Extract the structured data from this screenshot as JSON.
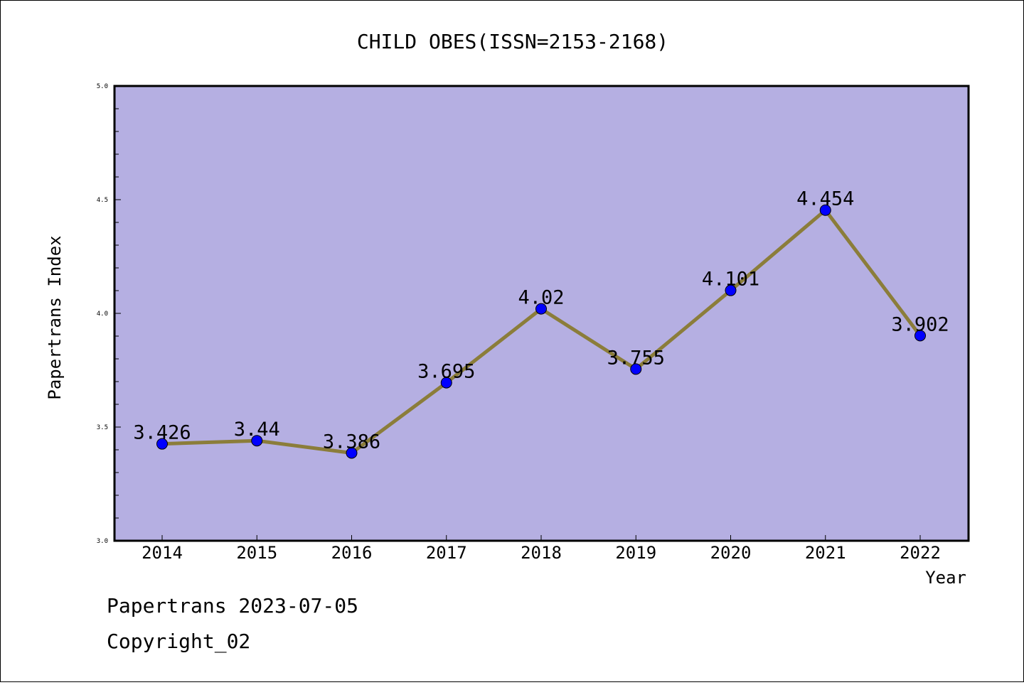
{
  "chart_data": {
    "type": "line",
    "title": "CHILD OBES(ISSN=2153-2168)",
    "xlabel": "Year",
    "ylabel": "Papertrans Index",
    "categories": [
      "2014",
      "2015",
      "2016",
      "2017",
      "2018",
      "2019",
      "2020",
      "2021",
      "2022"
    ],
    "series": [
      {
        "values": [
          3.426,
          3.44,
          3.386,
          3.695,
          4.02,
          3.755,
          4.101,
          4.454,
          3.902
        ],
        "labels": [
          "3.426",
          "3.44",
          "3.386",
          "3.695",
          "4.02",
          "3.755",
          "4.101",
          "4.454",
          "3.902"
        ],
        "line_color": "#8b7d3a",
        "marker_color": "#0000ff"
      }
    ],
    "ylim": [
      3.0,
      5.0
    ],
    "yticks": [
      "3.0",
      "3.5",
      "4.0",
      "4.5",
      "5.0"
    ],
    "plot_background": "#b5afe2",
    "grid": false
  },
  "footer": {
    "line1": "Papertrans 2023-07-05",
    "line2": "Copyright_02"
  }
}
